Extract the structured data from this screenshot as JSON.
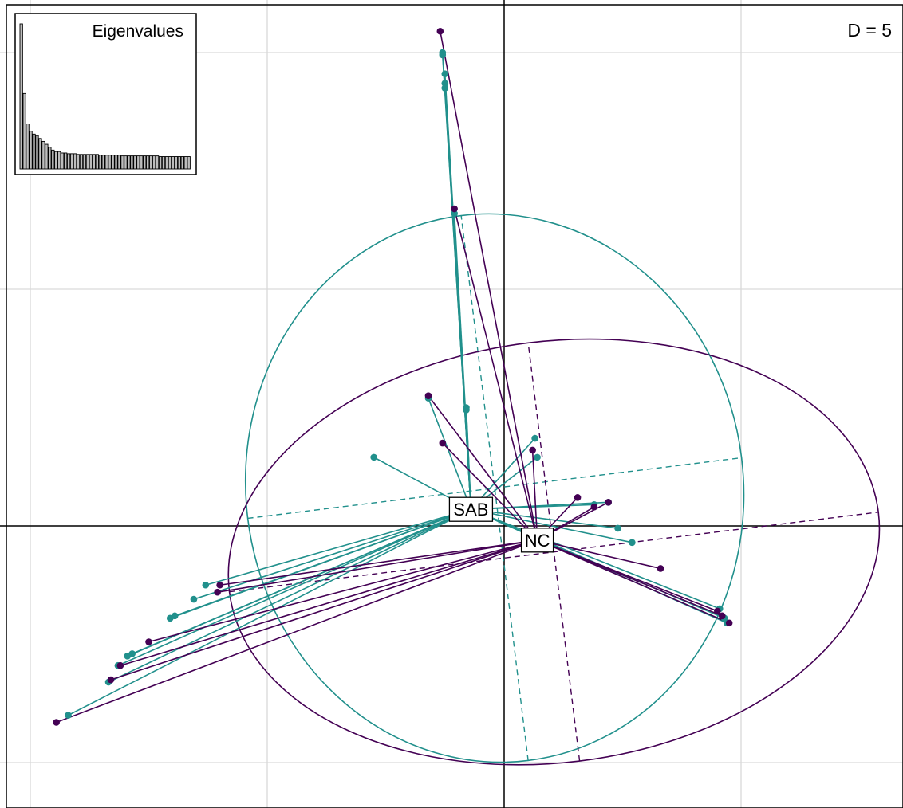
{
  "chart_data": {
    "type": "scatter",
    "title": "",
    "d_label": "D = 5",
    "xlim": [
      -2.1,
      1.7
    ],
    "ylim": [
      -1.18,
      2.2
    ],
    "grid": true,
    "grid_step": 1,
    "colors": {
      "NC": "#440154",
      "SAB": "#21908C",
      "grid": "#d9d9d9",
      "axis": "#000000"
    },
    "groups": [
      {
        "name": "SAB",
        "label": "SAB",
        "color": "#21908C",
        "centroid": [
          -0.14,
          0.07
        ],
        "ellipse": {
          "center": [
            -0.04,
            0.16
          ],
          "rx": 1.05,
          "ry": 1.16,
          "angle": 7
        },
        "points": [
          [
            -0.26,
            2.0
          ],
          [
            -0.26,
            1.99
          ],
          [
            -0.25,
            1.91
          ],
          [
            -0.25,
            1.87
          ],
          [
            -0.25,
            1.85
          ],
          [
            -0.21,
            1.32
          ],
          [
            -0.16,
            0.5
          ],
          [
            -0.16,
            0.49
          ],
          [
            -0.32,
            0.54
          ],
          [
            -0.55,
            0.29
          ],
          [
            0.13,
            0.37
          ],
          [
            0.14,
            0.29
          ],
          [
            0.44,
            0.1
          ],
          [
            0.38,
            0.09
          ],
          [
            0.48,
            -0.01
          ],
          [
            0.54,
            -0.07
          ],
          [
            0.91,
            -0.35
          ],
          [
            0.93,
            -0.39
          ],
          [
            0.94,
            -0.41
          ],
          [
            -1.26,
            -0.25
          ],
          [
            -1.31,
            -0.31
          ],
          [
            -1.39,
            -0.38
          ],
          [
            -1.41,
            -0.39
          ],
          [
            -1.57,
            -0.54
          ],
          [
            -1.59,
            -0.55
          ],
          [
            -1.63,
            -0.59
          ],
          [
            -1.67,
            -0.66
          ],
          [
            -1.84,
            -0.8
          ]
        ]
      },
      {
        "name": "NC",
        "label": "NC",
        "color": "#440154",
        "centroid": [
          0.14,
          -0.06
        ],
        "ellipse": {
          "center": [
            0.21,
            -0.11
          ],
          "rx": 1.38,
          "ry": 0.89,
          "angle": 7
        },
        "points": [
          [
            -0.27,
            2.09
          ],
          [
            -0.21,
            1.34
          ],
          [
            -0.32,
            0.55
          ],
          [
            -0.26,
            0.35
          ],
          [
            0.12,
            0.32
          ],
          [
            0.31,
            0.12
          ],
          [
            0.38,
            0.08
          ],
          [
            0.44,
            0.1
          ],
          [
            0.66,
            -0.18
          ],
          [
            -1.2,
            -0.25
          ],
          [
            -1.21,
            -0.28
          ],
          [
            -1.5,
            -0.49
          ],
          [
            -1.62,
            -0.59
          ],
          [
            -1.66,
            -0.65
          ],
          [
            -1.89,
            -0.83
          ],
          [
            0.9,
            -0.36
          ],
          [
            0.92,
            -0.38
          ],
          [
            0.95,
            -0.41
          ]
        ]
      }
    ]
  },
  "inset": {
    "title": "Eigenvalues",
    "values": [
      100,
      52,
      31,
      26,
      24,
      23,
      21,
      19,
      17,
      15,
      13,
      12,
      12,
      11,
      11,
      10.5,
      10.5,
      10.5,
      10,
      10,
      10,
      10,
      10,
      10,
      10,
      9.5,
      9.5,
      9.5,
      9.5,
      9.5,
      9.5,
      9.5,
      9,
      9,
      9,
      9,
      9,
      9,
      9,
      9,
      9,
      9,
      9,
      9,
      8.5,
      8.5,
      8.5,
      8.5,
      8.5,
      8.5,
      8.5,
      8.5,
      8.5,
      8.5
    ]
  }
}
